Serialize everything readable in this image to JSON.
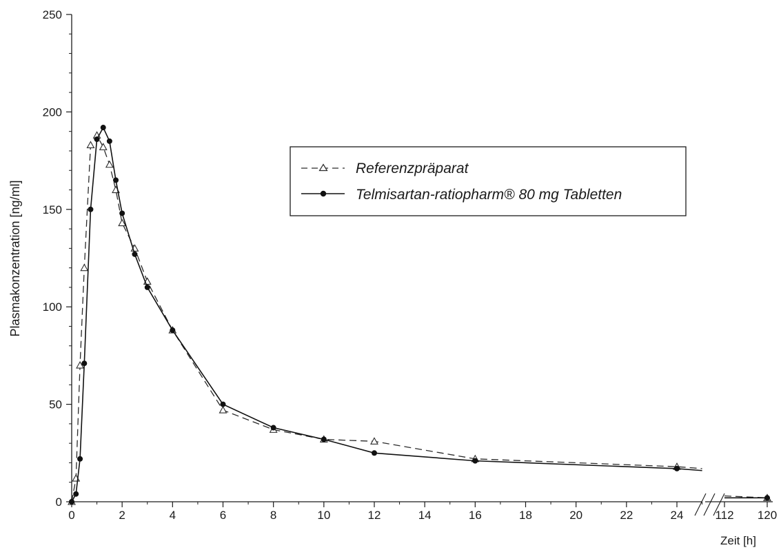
{
  "chart_data": {
    "type": "line",
    "ylabel": "Plasmakonzentration [ng/ml]",
    "xlabel": "Zeit [h]",
    "ylim": [
      0,
      250
    ],
    "yticks": [
      0,
      50,
      100,
      150,
      200,
      250
    ],
    "xlim_main": [
      0,
      25
    ],
    "xticks_main": [
      0,
      2,
      4,
      6,
      8,
      10,
      12,
      14,
      16,
      18,
      20,
      22,
      24
    ],
    "xlim_break": [
      108,
      120
    ],
    "xticks_break": [
      112,
      120
    ],
    "axis_break_after": 25,
    "legend": {
      "position": "upper-right"
    },
    "series": [
      {
        "name": "Referenzpräparat",
        "line_style": "dashed",
        "marker": "open-triangle",
        "color": "#2a2a2a",
        "x": [
          0,
          0.17,
          0.33,
          0.5,
          0.75,
          1,
          1.25,
          1.5,
          1.75,
          2,
          2.5,
          3,
          4,
          6,
          8,
          10,
          12,
          16,
          24,
          25,
          112,
          120
        ],
        "y": [
          0,
          12,
          70,
          120,
          183,
          188,
          182,
          173,
          160,
          143,
          130,
          113,
          88,
          47,
          37,
          32,
          31,
          22,
          18,
          17,
          3,
          2
        ]
      },
      {
        "name": "Telmisartan-ratiopharm® 80 mg Tabletten",
        "line_style": "solid",
        "marker": "filled-circle",
        "color": "#111111",
        "x": [
          0,
          0.17,
          0.33,
          0.5,
          0.75,
          1,
          1.25,
          1.5,
          1.75,
          2,
          2.5,
          3,
          4,
          6,
          8,
          10,
          12,
          16,
          24,
          25,
          112,
          120
        ],
        "y": [
          0,
          4,
          22,
          71,
          150,
          186,
          192,
          185,
          165,
          148,
          127,
          110,
          88,
          50,
          38,
          32,
          25,
          21,
          17,
          16,
          2,
          2
        ]
      }
    ]
  }
}
